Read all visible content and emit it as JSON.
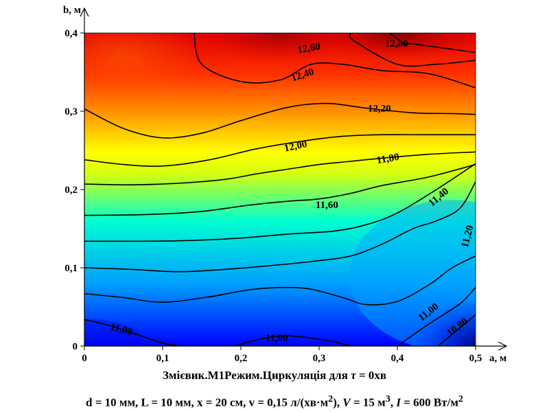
{
  "chart_data": {
    "type": "heatmap",
    "subtype": "contour",
    "xlabel": "a, м",
    "ylabel": "b, м",
    "xlim": [
      0,
      0.5
    ],
    "ylim": [
      0,
      0.4
    ],
    "x_ticks": [
      0,
      0.1,
      0.2,
      0.3,
      0.4,
      0.5
    ],
    "y_ticks": [
      0,
      0.1,
      0.2,
      0.3,
      0.4
    ],
    "x_tick_labels": [
      "0",
      "0,1",
      "0,2",
      "0,3",
      "0,4",
      "0,5"
    ],
    "y_tick_labels": [
      "0",
      "0,1",
      "0,2",
      "0,3",
      "0,4"
    ],
    "colormap": [
      "#0000ff",
      "#00b4ff",
      "#00ffd0",
      "#ffff00",
      "#ff8800",
      "#ff0000",
      "#8b0000"
    ],
    "value_range": [
      10.7,
      12.9
    ],
    "contour_levels": [
      {
        "label": "10,80",
        "value": 10.8,
        "points": [
          [
            0.452,
            0.0
          ],
          [
            0.5,
            0.04
          ]
        ]
      },
      {
        "label": "11,00",
        "value": 11.0,
        "points": [
          [
            0.0,
            0.034
          ],
          [
            0.04,
            0.024
          ],
          [
            0.1,
            0.004
          ],
          [
            0.13,
            0.0
          ]
        ]
      },
      {
        "label": "11,00",
        "value": 11.0,
        "points": [
          [
            0.19,
            0.0
          ],
          [
            0.25,
            0.013
          ],
          [
            0.31,
            0.007
          ],
          [
            0.34,
            0.0
          ]
        ]
      },
      {
        "label": "11,00",
        "value": 11.0,
        "points": [
          [
            0.4,
            0.0
          ],
          [
            0.44,
            0.028
          ],
          [
            0.48,
            0.054
          ],
          [
            0.5,
            0.075
          ]
        ]
      },
      {
        "label": "",
        "value": 11.1,
        "points": [
          [
            0.0,
            0.067
          ],
          [
            0.05,
            0.062
          ],
          [
            0.1,
            0.056
          ],
          [
            0.16,
            0.063
          ],
          [
            0.22,
            0.073
          ],
          [
            0.28,
            0.074
          ],
          [
            0.33,
            0.062
          ],
          [
            0.36,
            0.053
          ],
          [
            0.4,
            0.057
          ],
          [
            0.44,
            0.078
          ],
          [
            0.47,
            0.1
          ],
          [
            0.5,
            0.115
          ]
        ]
      },
      {
        "label": "11,20",
        "value": 11.2,
        "points": [
          [
            0.0,
            0.1
          ],
          [
            0.06,
            0.098
          ],
          [
            0.12,
            0.095
          ],
          [
            0.18,
            0.098
          ],
          [
            0.24,
            0.103
          ],
          [
            0.29,
            0.108
          ],
          [
            0.34,
            0.115
          ],
          [
            0.38,
            0.13
          ],
          [
            0.42,
            0.15
          ],
          [
            0.45,
            0.16
          ],
          [
            0.48,
            0.176
          ],
          [
            0.5,
            0.21
          ]
        ]
      },
      {
        "label": "11,40",
        "value": 11.4,
        "points": [
          [
            0.0,
            0.134
          ],
          [
            0.08,
            0.134
          ],
          [
            0.14,
            0.135
          ],
          [
            0.2,
            0.138
          ],
          [
            0.26,
            0.143
          ],
          [
            0.32,
            0.147
          ],
          [
            0.36,
            0.155
          ],
          [
            0.4,
            0.17
          ],
          [
            0.45,
            0.2
          ],
          [
            0.5,
            0.233
          ]
        ]
      },
      {
        "label": "11,60",
        "value": 11.6,
        "points": [
          [
            0.0,
            0.167
          ],
          [
            0.08,
            0.168
          ],
          [
            0.15,
            0.172
          ],
          [
            0.21,
            0.18
          ],
          [
            0.26,
            0.185
          ],
          [
            0.3,
            0.188
          ],
          [
            0.34,
            0.195
          ],
          [
            0.38,
            0.205
          ],
          [
            0.44,
            0.216
          ],
          [
            0.5,
            0.232
          ]
        ]
      },
      {
        "label": "11,80",
        "value": 11.8,
        "points": [
          [
            0.0,
            0.207
          ],
          [
            0.06,
            0.206
          ],
          [
            0.12,
            0.208
          ],
          [
            0.18,
            0.213
          ],
          [
            0.22,
            0.22
          ],
          [
            0.26,
            0.226
          ],
          [
            0.3,
            0.232
          ],
          [
            0.34,
            0.236
          ],
          [
            0.38,
            0.24
          ],
          [
            0.44,
            0.245
          ],
          [
            0.5,
            0.248
          ]
        ]
      },
      {
        "label": "12,00",
        "value": 12.0,
        "points": [
          [
            0.0,
            0.238
          ],
          [
            0.05,
            0.232
          ],
          [
            0.1,
            0.23
          ],
          [
            0.16,
            0.238
          ],
          [
            0.22,
            0.252
          ],
          [
            0.28,
            0.262
          ],
          [
            0.33,
            0.268
          ],
          [
            0.38,
            0.27
          ],
          [
            0.44,
            0.27
          ],
          [
            0.5,
            0.27
          ]
        ]
      },
      {
        "label": "12,20",
        "value": 12.2,
        "points": [
          [
            0.0,
            0.303
          ],
          [
            0.05,
            0.278
          ],
          [
            0.1,
            0.266
          ],
          [
            0.15,
            0.272
          ],
          [
            0.2,
            0.288
          ],
          [
            0.26,
            0.305
          ],
          [
            0.31,
            0.31
          ],
          [
            0.36,
            0.304
          ],
          [
            0.42,
            0.298
          ],
          [
            0.47,
            0.297
          ],
          [
            0.5,
            0.296
          ]
        ]
      },
      {
        "label": "12,40",
        "value": 12.4,
        "points": [
          [
            0.14,
            0.4
          ],
          [
            0.15,
            0.36
          ],
          [
            0.2,
            0.338
          ],
          [
            0.25,
            0.34
          ],
          [
            0.29,
            0.36
          ],
          [
            0.33,
            0.36
          ],
          [
            0.38,
            0.352
          ],
          [
            0.44,
            0.348
          ],
          [
            0.5,
            0.33
          ]
        ]
      },
      {
        "label": "12,60",
        "value": 12.6,
        "points": [
          [
            0.34,
            0.4
          ],
          [
            0.345,
            0.39
          ],
          [
            0.4,
            0.36
          ],
          [
            0.45,
            0.36
          ],
          [
            0.5,
            0.365
          ]
        ]
      },
      {
        "label": "12,80",
        "value": 12.8,
        "points": [
          [
            0.39,
            0.4
          ],
          [
            0.41,
            0.386
          ],
          [
            0.42,
            0.386
          ],
          [
            0.5,
            0.375
          ]
        ]
      }
    ],
    "contour_labels": [
      {
        "text": "10,80",
        "x": 0.477,
        "y": 0.024,
        "angle": -38
      },
      {
        "text": "11,00",
        "x": 0.047,
        "y": 0.021,
        "angle": 15
      },
      {
        "text": "11,00",
        "x": 0.246,
        "y": 0.01,
        "angle": 0
      },
      {
        "text": "11,00",
        "x": 0.44,
        "y": 0.043,
        "angle": -38
      },
      {
        "text": "11,20",
        "x": 0.49,
        "y": 0.14,
        "angle": -75
      },
      {
        "text": "11,40",
        "x": 0.453,
        "y": 0.19,
        "angle": -40
      },
      {
        "text": "11,60",
        "x": 0.31,
        "y": 0.18,
        "angle": 0
      },
      {
        "text": "11,80",
        "x": 0.388,
        "y": 0.239,
        "angle": -10
      },
      {
        "text": "12,00",
        "x": 0.27,
        "y": 0.255,
        "angle": -12
      },
      {
        "text": "12,20",
        "x": 0.377,
        "y": 0.303,
        "angle": 0
      },
      {
        "text": "12,40",
        "x": 0.279,
        "y": 0.346,
        "angle": -18
      },
      {
        "text": "12,60",
        "x": 0.287,
        "y": 0.38,
        "angle": -10
      },
      {
        "text": "12,80",
        "x": 0.399,
        "y": 0.386,
        "angle": 0
      }
    ]
  },
  "captions": {
    "line1_prefix": "Змієвик.М1Режим.Циркуляція для ",
    "line1_symbol": "τ",
    "line1_suffix": " = 0хв",
    "line2_a": "d = 10 мм, L = 10 мм, x = 20 см, v = 0,15 л/(хв·м",
    "line2_sup1": "2",
    "line2_b": "), ",
    "line2_V": "V",
    "line2_c": " = 15 м",
    "line2_sup2": "3",
    "line2_d": ", ",
    "line2_I": "I",
    "line2_e": " = 600 Вт/м",
    "line2_sup3": "2"
  }
}
